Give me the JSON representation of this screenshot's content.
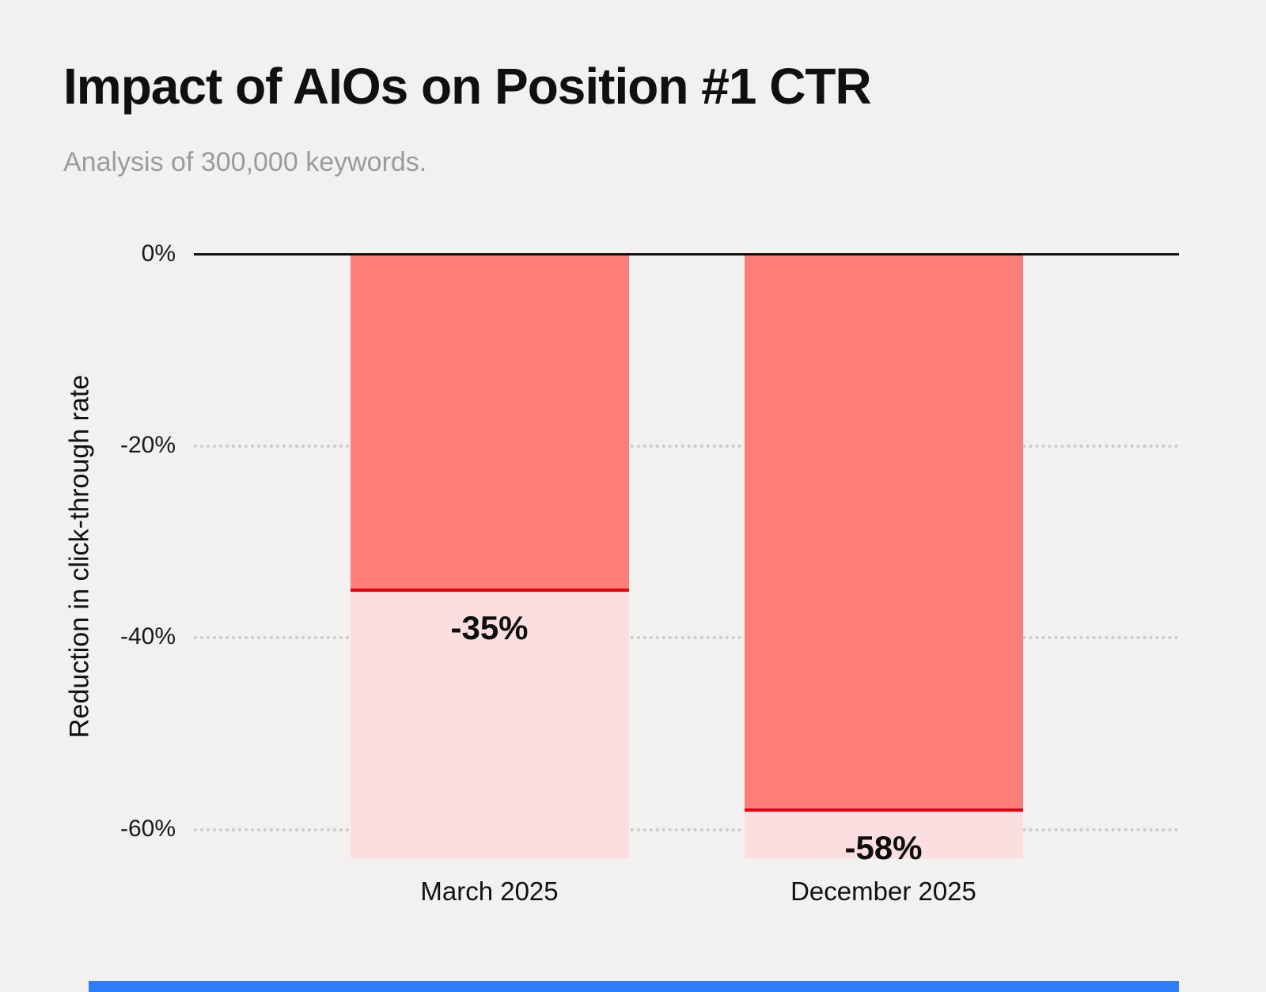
{
  "header": {
    "title": "Impact of AIOs on Position #1 CTR",
    "subtitle": "Analysis of 300,000 keywords."
  },
  "chart_data": {
    "type": "bar",
    "title": "Impact of AIOs on Position #1 CTR",
    "subtitle": "Analysis of 300,000 keywords.",
    "categories": [
      "March 2025",
      "December 2025"
    ],
    "values": [
      -35,
      -58
    ],
    "value_labels": [
      "-35%",
      "-58%"
    ],
    "xlabel": "",
    "ylabel": "Reduction in click-through rate",
    "ylim": [
      -63,
      0
    ],
    "yticks": [
      {
        "value": 0,
        "label": "0%"
      },
      {
        "value": -20,
        "label": "-20%"
      },
      {
        "value": -40,
        "label": "-40%"
      },
      {
        "value": -60,
        "label": "-60%"
      }
    ],
    "grid": "horizontal-dotted",
    "legend": "none",
    "colors": {
      "background": "#F2F1EF",
      "bar_fill": "#FD7E78",
      "value_line": "#E3000F",
      "bar_extension_fill": "#FBDEDF",
      "gridline": "#CCCBC9",
      "zero_axis": "#111111",
      "bottom_accent": "#2D7FF9"
    }
  }
}
